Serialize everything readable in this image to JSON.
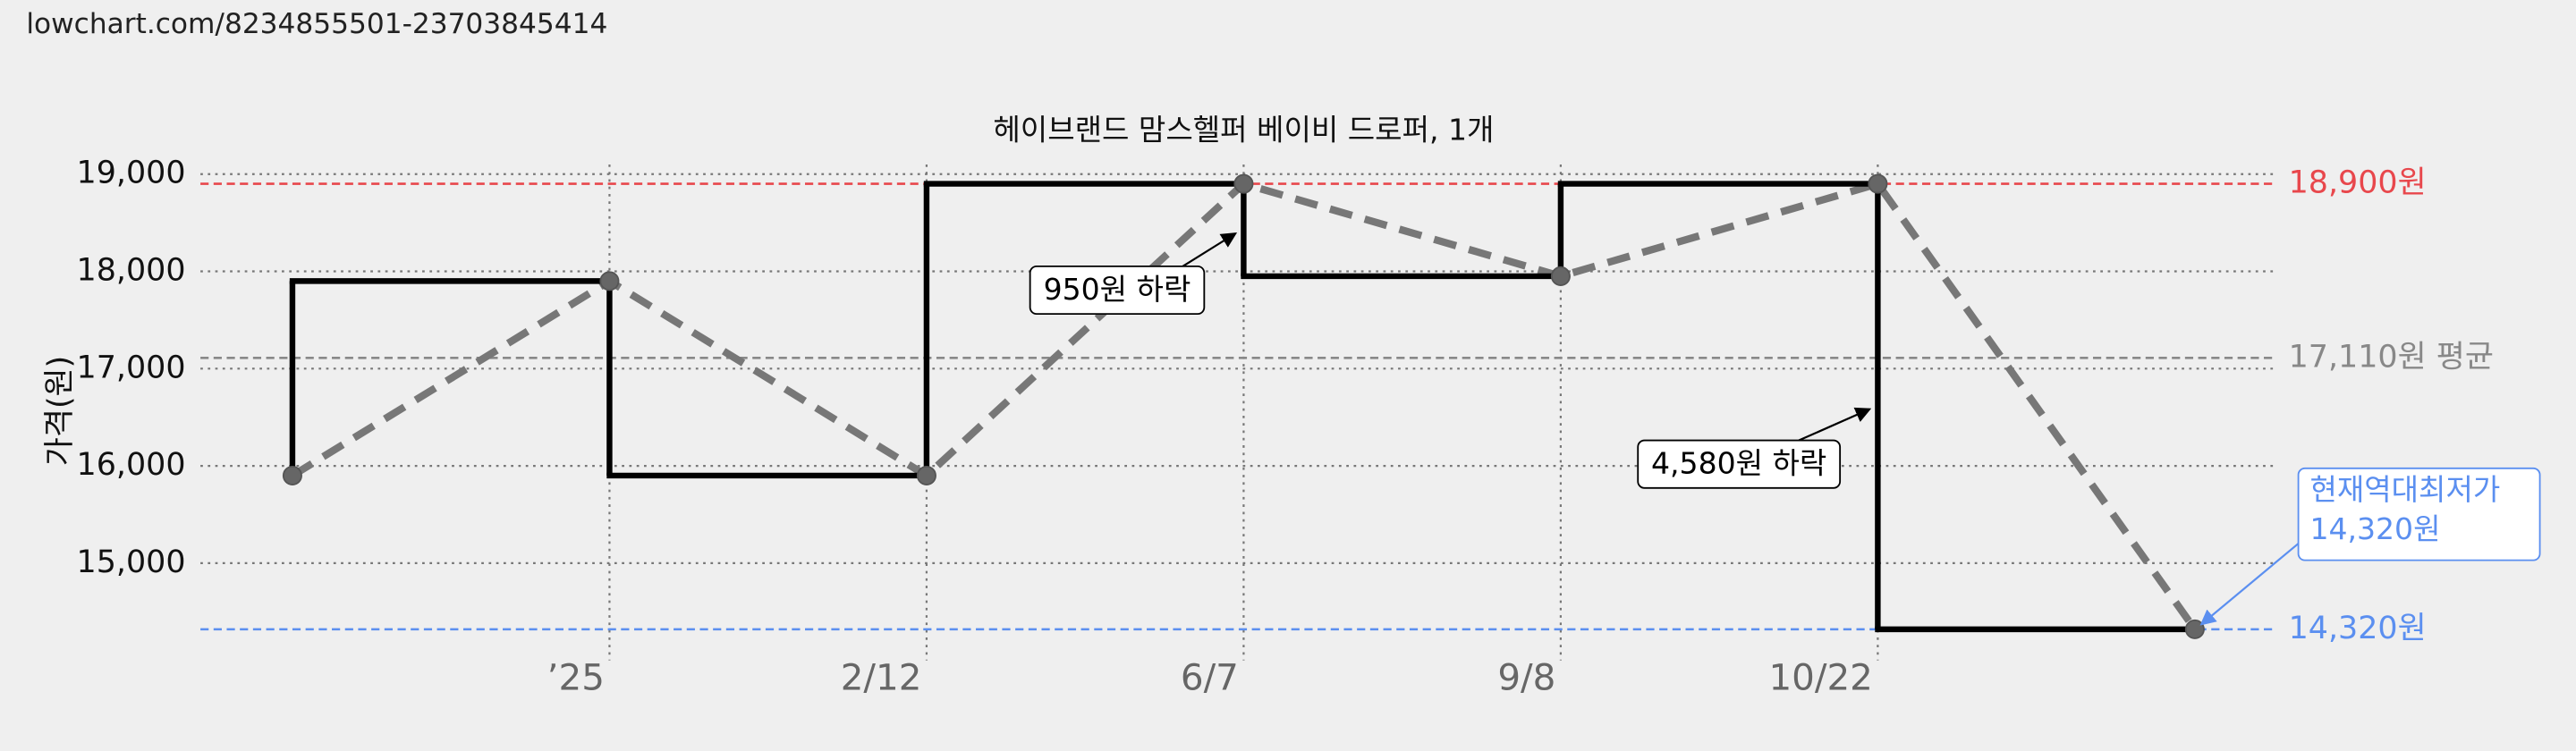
{
  "url": "lowchart.com/8234855501-23703845414",
  "chart_data": {
    "type": "step",
    "title": "헤이브랜드 맘스헬퍼 베이비 드로퍼, 1개",
    "y_label": "가격(원)",
    "categories": [
      null,
      "’25",
      "2/12",
      "6/7",
      "9/8",
      "10/22",
      null
    ],
    "values": [
      15900,
      17900,
      15900,
      18900,
      17950,
      18900,
      14320
    ],
    "step_color": "#000000",
    "trend_color": "#777777",
    "ylim": [
      14000,
      19200
    ],
    "yticks": [
      {
        "value": 15000,
        "label": "15,000"
      },
      {
        "value": 16000,
        "label": "16,000"
      },
      {
        "value": 17000,
        "label": "17,000"
      },
      {
        "value": 18000,
        "label": "18,000"
      },
      {
        "value": 19000,
        "label": "19,000"
      }
    ],
    "grid": true,
    "reference_lines": [
      {
        "value": 18900,
        "label": "18,900원",
        "color": "#e8474c"
      },
      {
        "value": 17110,
        "label": "17,110원 평균",
        "color": "#888888"
      },
      {
        "value": 14320,
        "label": "14,320원",
        "color": "#5b8ff0"
      }
    ],
    "annotations": [
      "950원 하락",
      "4,580원 하락"
    ],
    "callout": [
      "현재역대최저가",
      "14,320원"
    ]
  }
}
